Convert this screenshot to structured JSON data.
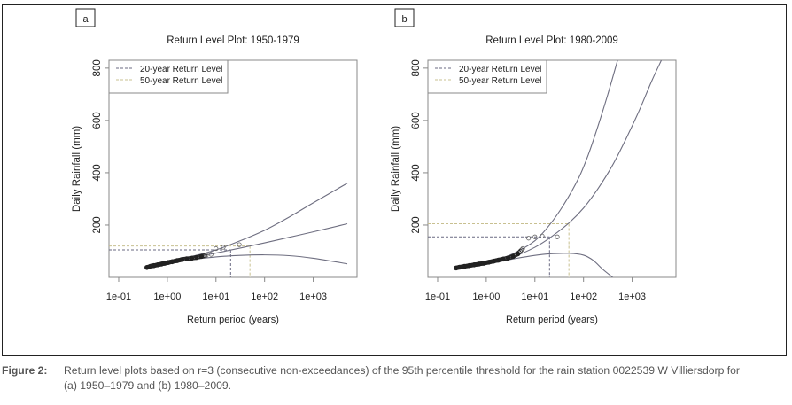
{
  "figure": {
    "caption_label": "Figure 2:",
    "caption_line1": "Return level plots based on r=3 (consecutive non-exceedances) of the 95th percentile threshold for the rain station 0022539 W Villiersdorp for",
    "caption_line2": "(a) 1950–1979 and (b) 1980–2009."
  },
  "colors": {
    "curve": "#6e6e80",
    "rl20": "#6a6a82",
    "rl50": "#c8c090",
    "axis": "#888888",
    "points": "#222222"
  },
  "chart_data": [
    {
      "panel_label": "a",
      "type": "line",
      "title": "Return Level Plot: 1950-1979",
      "xlabel": "Return period (years)",
      "ylabel": "Daily Rainfall (mm)",
      "x_scale": "log10",
      "xlim_log10": [
        -1.2,
        3.9
      ],
      "ylim": [
        0,
        830
      ],
      "x_ticks": [
        -1,
        0,
        1,
        2,
        3
      ],
      "x_tick_labels": [
        "1e-01",
        "1e+00",
        "1e+01",
        "1e+02",
        "1e+03"
      ],
      "y_ticks": [
        200,
        400,
        600,
        800
      ],
      "y_tick_labels": [
        "200",
        "400",
        "600",
        "800"
      ],
      "legend": {
        "position": "top-left",
        "entries": [
          "20-year Return Level",
          "50-year Return Level"
        ]
      },
      "return_levels": {
        "rl20": {
          "period": 20,
          "value": 105
        },
        "rl50": {
          "period": 50,
          "value": 120
        }
      },
      "series": [
        {
          "name": "Estimate",
          "x_log10": [
            -0.4,
            0,
            0.5,
            1,
            1.5,
            2,
            2.5,
            3,
            3.7
          ],
          "y": [
            40,
            58,
            75,
            93,
            112,
            132,
            153,
            174,
            205
          ]
        },
        {
          "name": "Upper CI",
          "x_log10": [
            -0.4,
            0,
            0.5,
            1,
            1.5,
            2,
            2.5,
            3,
            3.7
          ],
          "y": [
            42,
            60,
            80,
            105,
            140,
            180,
            230,
            285,
            360
          ]
        },
        {
          "name": "Lower CI",
          "x_log10": [
            -0.4,
            0,
            0.5,
            1,
            1.5,
            2,
            2.5,
            3,
            3.7
          ],
          "y": [
            38,
            55,
            68,
            78,
            84,
            86,
            83,
            73,
            52
          ]
        }
      ],
      "points": {
        "x_log10": [
          -0.42,
          -0.35,
          -0.28,
          -0.2,
          -0.12,
          -0.05,
          0.02,
          0.1,
          0.2,
          0.3,
          0.4,
          0.5,
          0.6,
          0.7,
          0.8,
          0.9,
          1.0,
          1.15,
          1.48
        ],
        "y": [
          38,
          42,
          45,
          48,
          51,
          54,
          57,
          60,
          64,
          68,
          71,
          73,
          76,
          80,
          84,
          88,
          110,
          115,
          125
        ]
      }
    },
    {
      "panel_label": "b",
      "type": "line",
      "title": "Return Level Plot: 1980-2009",
      "xlabel": "Return period (years)",
      "ylabel": "Daily Rainfall (mm)",
      "x_scale": "log10",
      "xlim_log10": [
        -1.2,
        3.9
      ],
      "ylim": [
        0,
        830
      ],
      "x_ticks": [
        -1,
        0,
        1,
        2,
        3
      ],
      "x_tick_labels": [
        "1e-01",
        "1e+00",
        "1e+01",
        "1e+02",
        "1e+03"
      ],
      "y_ticks": [
        200,
        400,
        600,
        800
      ],
      "y_tick_labels": [
        "200",
        "400",
        "600",
        "800"
      ],
      "legend": {
        "position": "top-left",
        "entries": [
          "20-year Return Level",
          "50-year Return Level"
        ]
      },
      "return_levels": {
        "rl20": {
          "period": 20,
          "value": 155
        },
        "rl50": {
          "period": 50,
          "value": 205
        }
      },
      "series": [
        {
          "name": "Estimate",
          "x_log10": [
            -0.6,
            -0.2,
            0.2,
            0.6,
            1.0,
            1.3,
            1.7,
            2.0,
            2.3,
            2.6,
            2.9,
            3.15,
            3.4,
            3.6
          ],
          "y": [
            38,
            48,
            62,
            82,
            115,
            150,
            208,
            265,
            340,
            430,
            540,
            640,
            750,
            830
          ]
        },
        {
          "name": "Upper CI",
          "x_log10": [
            -0.6,
            -0.2,
            0.2,
            0.6,
            1.0,
            1.3,
            1.6,
            1.9,
            2.1,
            2.3,
            2.5,
            2.7
          ],
          "y": [
            40,
            50,
            66,
            95,
            140,
            200,
            280,
            380,
            470,
            580,
            700,
            830
          ]
        },
        {
          "name": "Lower CI",
          "x_log10": [
            -0.6,
            -0.2,
            0.2,
            0.6,
            1.0,
            1.3,
            1.7,
            2.0,
            2.2,
            2.4,
            2.6
          ],
          "y": [
            36,
            46,
            58,
            72,
            84,
            90,
            92,
            85,
            65,
            30,
            0
          ]
        }
      ],
      "points": {
        "x_log10": [
          -0.62,
          -0.55,
          -0.45,
          -0.35,
          -0.25,
          -0.15,
          -0.05,
          0.05,
          0.15,
          0.25,
          0.35,
          0.45,
          0.55,
          0.65,
          0.75,
          0.87,
          1.0,
          1.15,
          1.46
        ],
        "y": [
          36,
          39,
          42,
          45,
          48,
          51,
          54,
          58,
          62,
          66,
          70,
          74,
          80,
          90,
          110,
          150,
          155,
          158,
          155
        ]
      }
    }
  ]
}
